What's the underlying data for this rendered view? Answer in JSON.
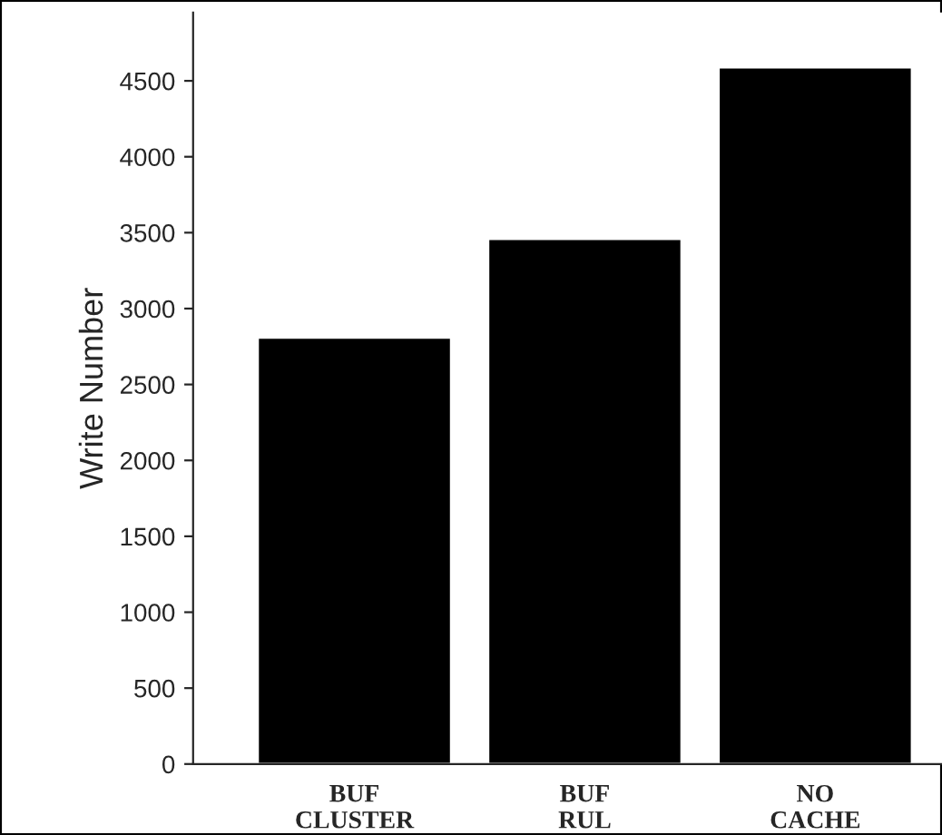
{
  "chart_data": {
    "type": "bar",
    "ylabel": "Write Number",
    "categories": [
      "BUF\nCLUSTER",
      "BUF\nRUL",
      "NO\nCACHE"
    ],
    "values": [
      2810,
      3460,
      4590
    ],
    "color": "#000000",
    "ylim": [
      0,
      4950
    ],
    "yticks": [
      0,
      500,
      1000,
      1500,
      2000,
      2500,
      3000,
      3500,
      4000,
      4500
    ],
    "grid": false,
    "legend": false
  }
}
